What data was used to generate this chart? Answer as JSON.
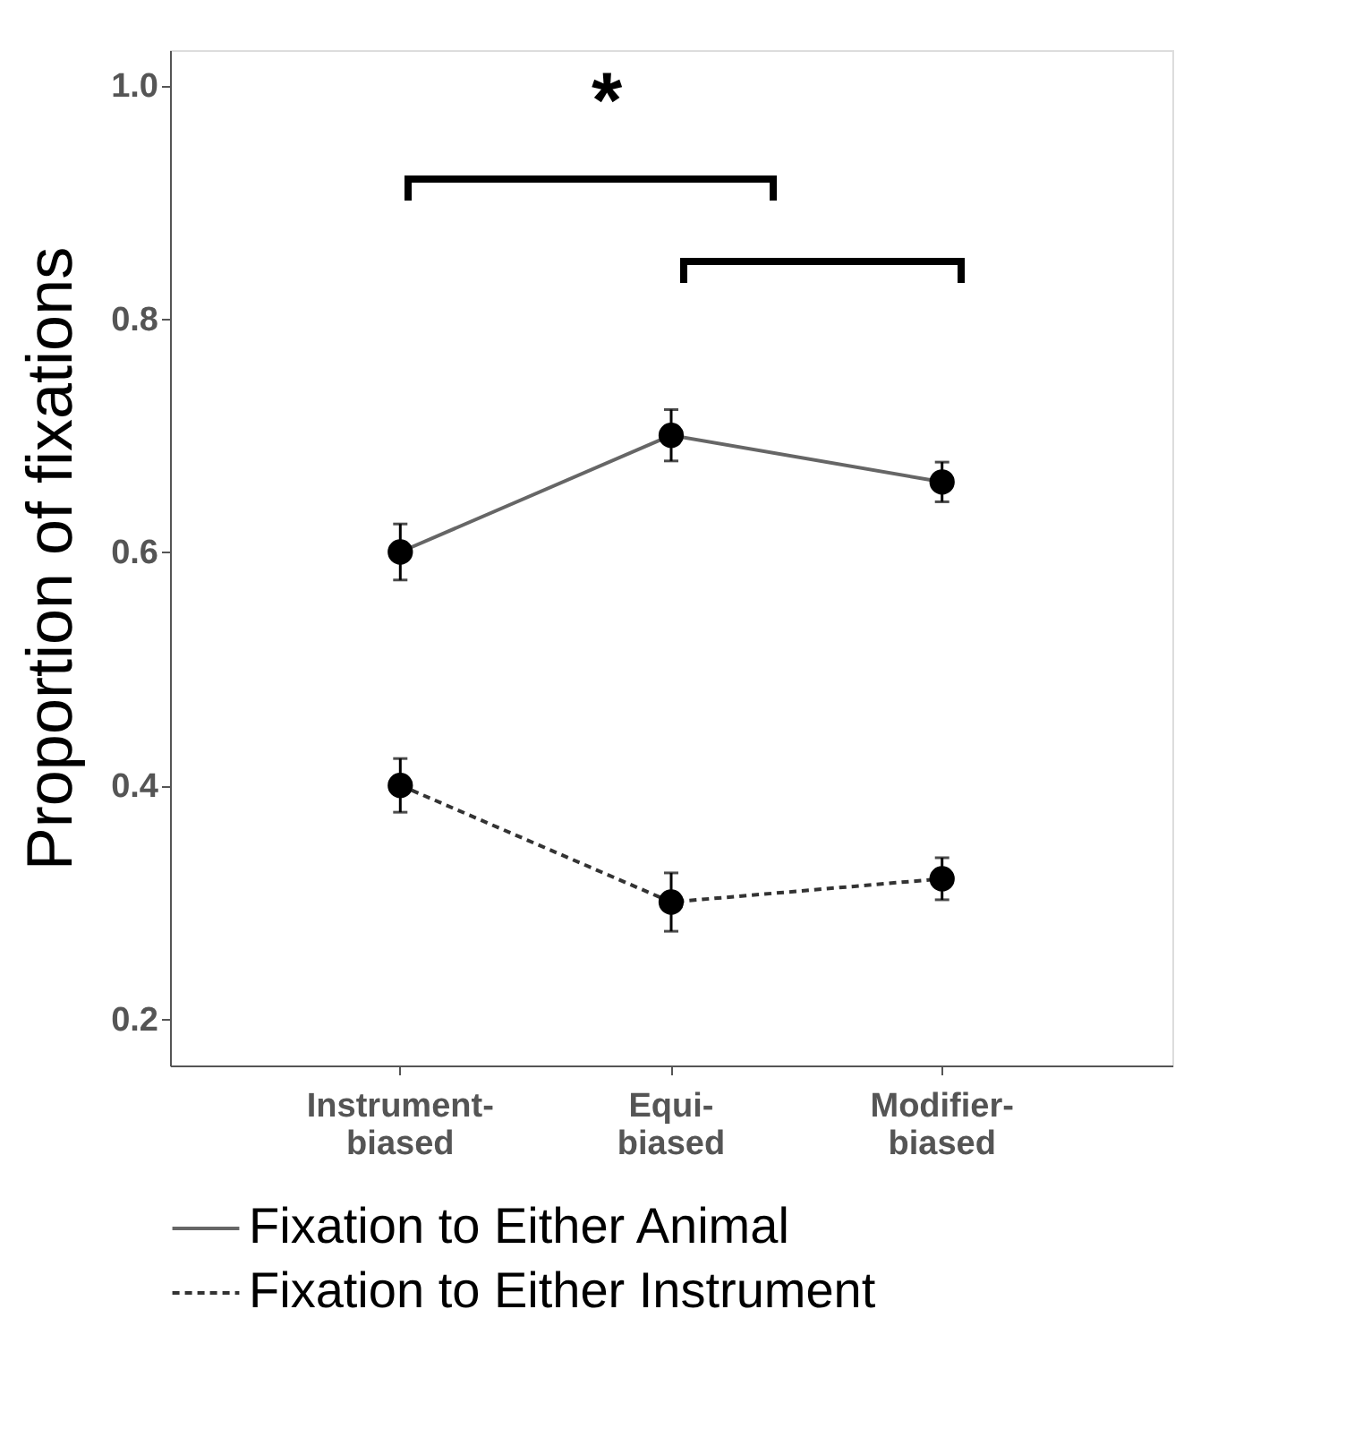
{
  "chart_data": {
    "type": "line",
    "ylabel": "Proportion of fixations",
    "categories": [
      "Instrument-biased",
      "Equi-biased",
      "Modifier-biased"
    ],
    "series": [
      {
        "name": "Fixation to Either Animal",
        "color": "#666666",
        "line_style": "solid",
        "values": [
          0.6,
          0.7,
          0.66
        ],
        "errors": [
          0.024,
          0.022,
          0.017
        ]
      },
      {
        "name": "Fixation to Either Instrument",
        "color": "#333333",
        "line_style": "dashed",
        "values": [
          0.4,
          0.3,
          0.32
        ],
        "errors": [
          0.023,
          0.025,
          0.018
        ]
      }
    ],
    "marker": "circle",
    "ylim": [
      0.16,
      1.03
    ],
    "yticks": [
      {
        "value": 0.2,
        "label": "0.2"
      },
      {
        "value": 0.4,
        "label": "0.4"
      },
      {
        "value": 0.6,
        "label": "0.6"
      },
      {
        "value": 0.8,
        "label": "0.8"
      },
      {
        "value": 1.0,
        "label": "1.0"
      }
    ],
    "grid": false,
    "legend": "bottom",
    "annotations": [
      "*"
    ]
  }
}
